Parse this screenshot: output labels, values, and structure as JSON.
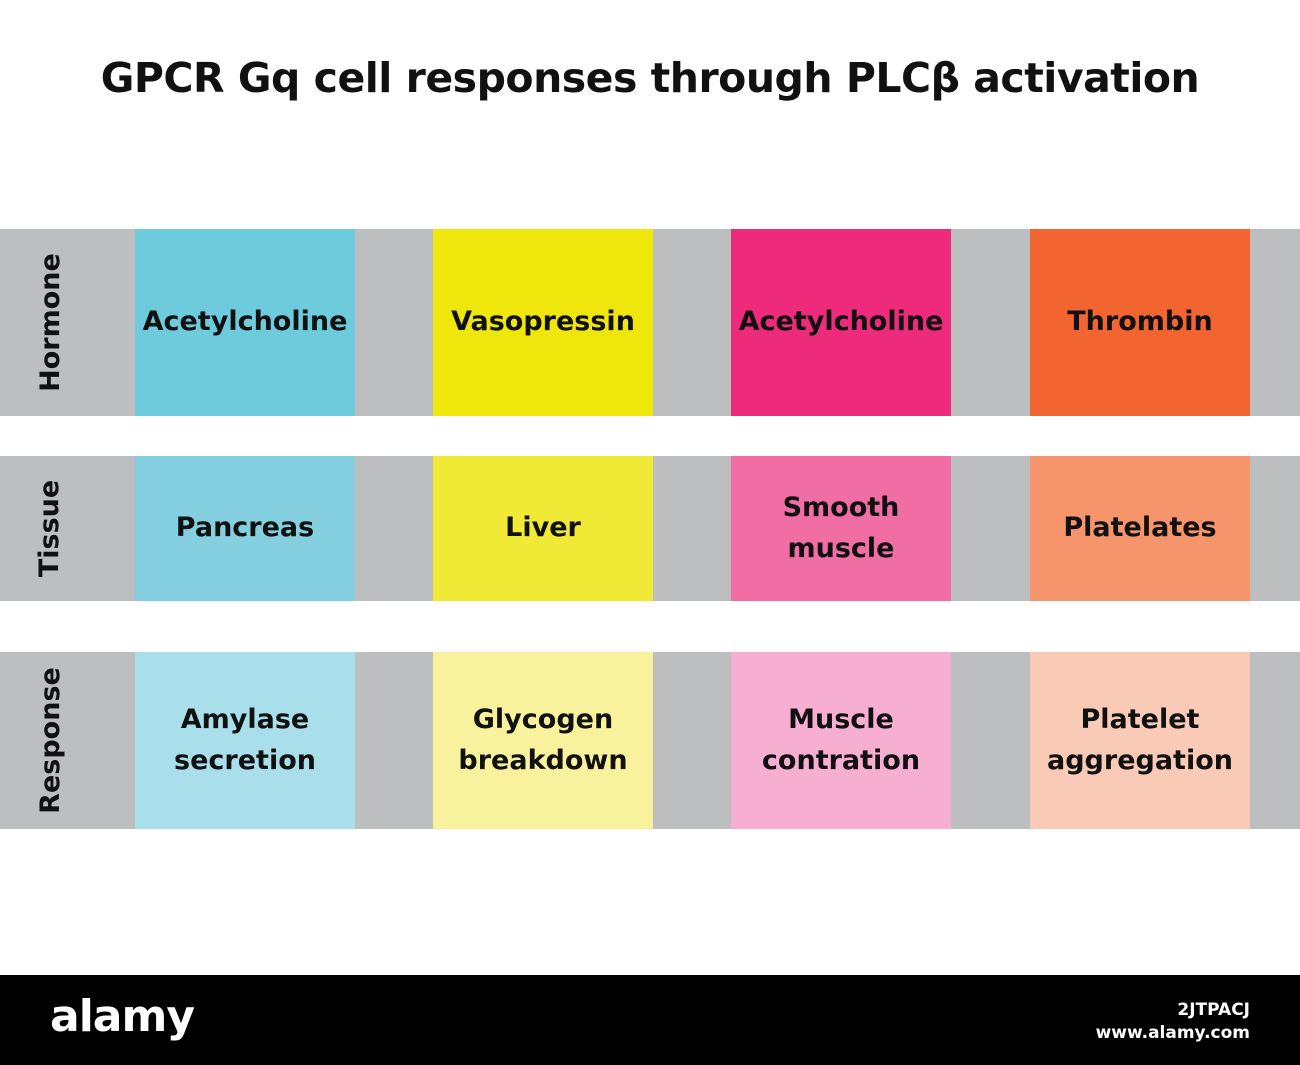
{
  "title": "GPCR Gq cell responses through PLCβ activation",
  "rows": [
    {
      "label": "Hormone",
      "cells": [
        {
          "lines": [
            "Acetylcholine"
          ],
          "color": "#6ecbdc"
        },
        {
          "lines": [
            "Vasopressin"
          ],
          "color": "#efe70c"
        },
        {
          "lines": [
            "Acetylcholine"
          ],
          "color": "#ee2a7b"
        },
        {
          "lines": [
            "Thrombin"
          ],
          "color": "#f26531"
        }
      ]
    },
    {
      "label": "Tissue",
      "cells": [
        {
          "lines": [
            "Pancreas"
          ],
          "color": "#85d0e0"
        },
        {
          "lines": [
            "Liver"
          ],
          "color": "#f0ea36"
        },
        {
          "lines": [
            "Smooth",
            "muscle"
          ],
          "color": "#f06ea3"
        },
        {
          "lines": [
            "Platelates"
          ],
          "color": "#f6946c"
        }
      ]
    },
    {
      "label": "Response",
      "cells": [
        {
          "lines": [
            "Amylase",
            "secretion"
          ],
          "color": "#a9dfea"
        },
        {
          "lines": [
            "Glycogen",
            "breakdown"
          ],
          "color": "#f7f29b"
        },
        {
          "lines": [
            "Muscle",
            "contration"
          ],
          "color": "#f6afd0"
        },
        {
          "lines": [
            "Platelet",
            "aggregation"
          ],
          "color": "#f9cbb6"
        }
      ]
    }
  ],
  "footer": {
    "logo": "alamy",
    "image_id": "2JTPACJ",
    "website": "www.alamy.com"
  }
}
